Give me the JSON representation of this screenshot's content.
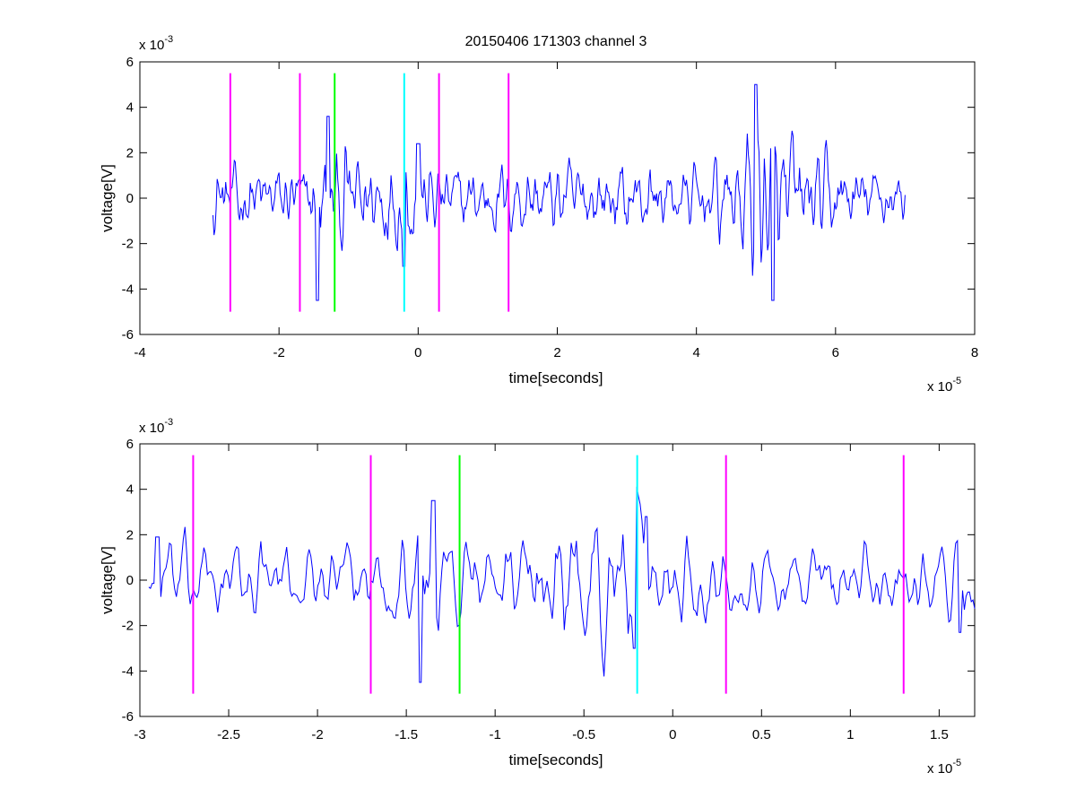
{
  "chart_data": [
    {
      "type": "line",
      "title": "20150406 171303 channel 3",
      "xlabel": "time[seconds]",
      "ylabel": "voltage[V]",
      "x_multiplier": "x 10",
      "x_exponent": "-5",
      "y_multiplier": "x 10",
      "y_exponent": "-3",
      "xlim": [
        -4,
        8
      ],
      "ylim": [
        -6,
        6
      ],
      "xticks": [
        "-4",
        "-2",
        "0",
        "2",
        "4",
        "6",
        "8"
      ],
      "yticks": [
        "-6",
        "-4",
        "-2",
        "0",
        "2",
        "4",
        "6"
      ],
      "grid": false,
      "legend": "none",
      "signal": {
        "color": "#0000ff",
        "x_range": [
          -2.95,
          7.0
        ],
        "samples": 650,
        "approx_amplitude": 1.0,
        "envelope": [
          [
            -2.95,
            1.1
          ],
          [
            -1.6,
            1.0
          ],
          [
            -1.4,
            1.6
          ],
          [
            -0.6,
            1.4
          ],
          [
            -0.2,
            1.6
          ],
          [
            0.3,
            1.0
          ],
          [
            1.5,
            1.1
          ],
          [
            3.0,
            1.1
          ],
          [
            4.0,
            0.9
          ],
          [
            4.5,
            1.2
          ],
          [
            4.9,
            2.4
          ],
          [
            5.2,
            2.0
          ],
          [
            5.8,
            1.2
          ],
          [
            7.0,
            0.8
          ]
        ],
        "extremes": [
          [
            -1.45,
            -4.5
          ],
          [
            -1.3,
            3.6
          ],
          [
            -0.2,
            -3.0
          ],
          [
            0.0,
            2.4
          ],
          [
            4.85,
            5.0
          ],
          [
            5.1,
            -4.5
          ]
        ]
      },
      "markers": [
        {
          "x": -2.7,
          "color": "#ff00ff"
        },
        {
          "x": -1.7,
          "color": "#ff00ff"
        },
        {
          "x": -1.2,
          "color": "#00ff00"
        },
        {
          "x": -0.2,
          "color": "#00ffff"
        },
        {
          "x": 0.3,
          "color": "#ff00ff"
        },
        {
          "x": 1.3,
          "color": "#ff00ff"
        }
      ],
      "marker_range": [
        -5,
        5.5
      ]
    },
    {
      "type": "line",
      "title": "",
      "xlabel": "time[seconds]",
      "ylabel": "voltage[V]",
      "x_multiplier": "x 10",
      "x_exponent": "-5",
      "y_multiplier": "x 10",
      "y_exponent": "-3",
      "xlim": [
        -3.0,
        1.7
      ],
      "ylim": [
        -6,
        6
      ],
      "xticks": [
        "-3",
        "-2.5",
        "-2",
        "-1.5",
        "-1",
        "-0.5",
        "0",
        "0.5",
        "1",
        "1.5"
      ],
      "xtick_values": [
        -3,
        -2.5,
        -2,
        -1.5,
        -1,
        -0.5,
        0,
        0.5,
        1,
        1.5
      ],
      "yticks": [
        "-6",
        "-4",
        "-2",
        "0",
        "2",
        "4",
        "6"
      ],
      "grid": false,
      "legend": "none",
      "signal": {
        "color": "#0000ff",
        "x_range": [
          -2.95,
          1.7
        ],
        "samples": 480,
        "approx_amplitude": 1.0,
        "envelope": [
          [
            -2.95,
            1.2
          ],
          [
            -2.0,
            0.9
          ],
          [
            -1.6,
            1.1
          ],
          [
            -1.4,
            1.8
          ],
          [
            -1.2,
            1.2
          ],
          [
            -0.8,
            1.4
          ],
          [
            -0.5,
            2.0
          ],
          [
            -0.2,
            2.2
          ],
          [
            0.0,
            1.4
          ],
          [
            0.3,
            1.0
          ],
          [
            1.7,
            1.1
          ]
        ],
        "extremes": [
          [
            -2.9,
            1.9
          ],
          [
            -1.42,
            -4.5
          ],
          [
            -1.35,
            3.5
          ],
          [
            -0.22,
            -3.0
          ],
          [
            -0.15,
            2.8
          ],
          [
            1.62,
            -2.3
          ]
        ]
      },
      "markers": [
        {
          "x": -2.7,
          "color": "#ff00ff"
        },
        {
          "x": -1.7,
          "color": "#ff00ff"
        },
        {
          "x": -1.2,
          "color": "#00ff00"
        },
        {
          "x": -0.2,
          "color": "#00ffff"
        },
        {
          "x": 0.3,
          "color": "#ff00ff"
        },
        {
          "x": 1.3,
          "color": "#ff00ff"
        }
      ],
      "marker_range": [
        -5,
        5.5
      ]
    }
  ]
}
